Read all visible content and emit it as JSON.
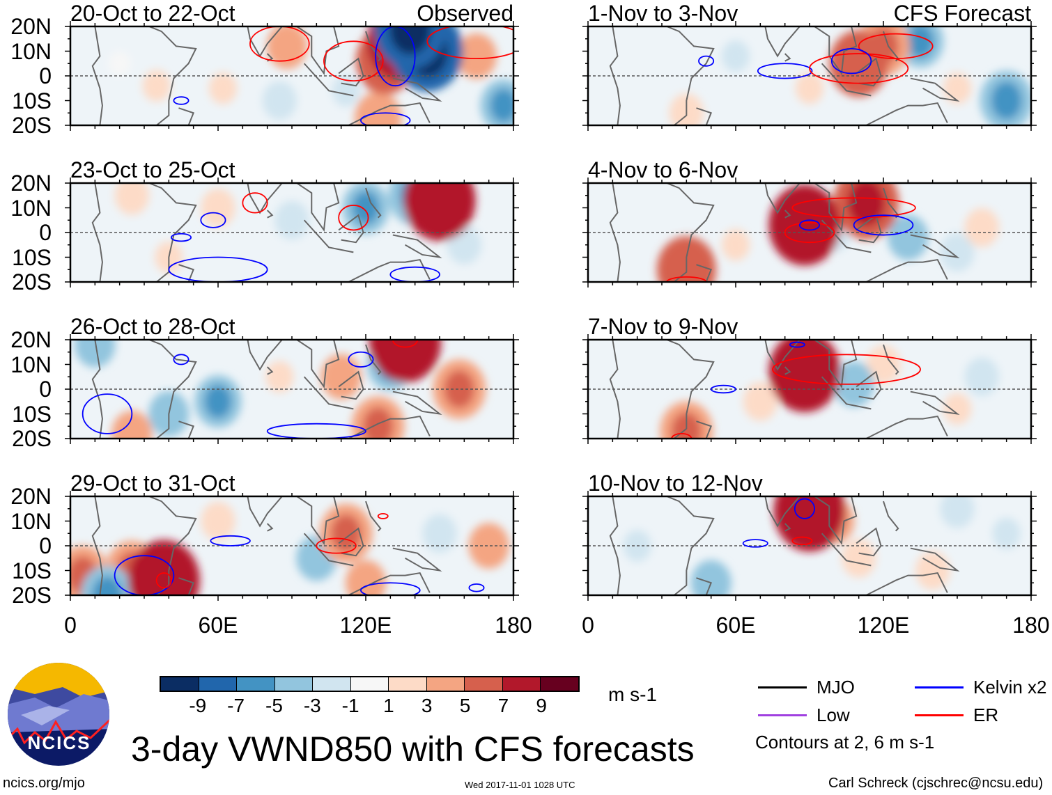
{
  "title": "3-day VWND850 with CFS forecasts",
  "footer": {
    "left": "ncics.org/mjo",
    "center": "Wed 2017-11-01 1028 UTC",
    "right": "Carl Schreck (cjschrec@ncsu.edu)"
  },
  "logo_text": "NCICS",
  "colorbar": {
    "units": "m s-1",
    "colors": [
      "#0b2d63",
      "#2166ac",
      "#4393c3",
      "#92c5de",
      "#d1e5f0",
      "#f7f7f7",
      "#fddbc7",
      "#f4a582",
      "#d6604d",
      "#b2182b",
      "#67001f"
    ],
    "labels": [
      "-9",
      "-7",
      "-5",
      "-3",
      "-1",
      "1",
      "3",
      "5",
      "7",
      "9"
    ]
  },
  "legend": {
    "items": [
      {
        "label": "MJO",
        "color": "#000000"
      },
      {
        "label": "Kelvin x2",
        "color": "#0000ff"
      },
      {
        "label": "Low",
        "color": "#a040e0"
      },
      {
        "label": "ER",
        "color": "#ff0000"
      }
    ],
    "note": "Contours at 2, 6 m s-1"
  },
  "chart_data": {
    "type": "heatmap",
    "variable": "850-hPa meridional wind anomaly",
    "lat_ticks": [
      "20N",
      "10N",
      "0",
      "10S",
      "20S"
    ],
    "lon_ticks": [
      "0",
      "60E",
      "120E",
      "180"
    ],
    "xlim": [
      0,
      180
    ],
    "ylim": [
      -20,
      20
    ],
    "column_labels": [
      "Observed",
      "CFS Forecast"
    ],
    "panels": [
      {
        "title": "20-Oct to 22-Oct",
        "col": 0,
        "row": 0,
        "anomalies": [
          [
            135,
            14,
            9
          ],
          [
            128,
            6,
            7
          ],
          [
            145,
            10,
            -9
          ],
          [
            138,
            19,
            -9
          ],
          [
            88,
            12,
            4
          ],
          [
            165,
            8,
            4
          ],
          [
            62,
            -5,
            2
          ],
          [
            35,
            -4,
            2
          ],
          [
            125,
            -17,
            5
          ],
          [
            176,
            -12,
            -5
          ],
          [
            85,
            -10,
            -3
          ],
          [
            112,
            -6,
            -2
          ],
          [
            20,
            5,
            -1
          ]
        ],
        "contours": [
          [
            "ER",
            115,
            6,
            12,
            8
          ],
          [
            "ER",
            85,
            13,
            12,
            7
          ],
          [
            "Kelvin",
            132,
            8,
            8,
            12
          ],
          [
            "ER",
            165,
            14,
            20,
            7
          ],
          [
            "Kelvin",
            45,
            -10,
            3,
            1.5
          ],
          [
            "Kelvin",
            128,
            -18,
            10,
            3
          ]
        ]
      },
      {
        "title": "1-Nov to 3-Nov",
        "col": 1,
        "row": 1,
        "anomalies": [
          [
            110,
            5,
            7
          ],
          [
            120,
            12,
            6
          ],
          [
            135,
            14,
            -5
          ],
          [
            170,
            -10,
            -6
          ],
          [
            90,
            -5,
            2
          ],
          [
            40,
            -15,
            3
          ],
          [
            60,
            8,
            -2
          ],
          [
            150,
            -5,
            2
          ]
        ],
        "contours": [
          [
            "Kelvin",
            80,
            2,
            11,
            3
          ],
          [
            "ER",
            110,
            3,
            20,
            6
          ],
          [
            "ER",
            125,
            12,
            15,
            5
          ],
          [
            "Kelvin",
            107,
            6,
            8,
            5
          ],
          [
            "Kelvin",
            48,
            6,
            3,
            2
          ]
        ]
      },
      {
        "title": "23-Oct to 25-Oct",
        "col": 0,
        "row": 2,
        "anomalies": [
          [
            150,
            13,
            9
          ],
          [
            140,
            15,
            -6
          ],
          [
            120,
            10,
            -5
          ],
          [
            60,
            10,
            3
          ],
          [
            90,
            5,
            -3
          ],
          [
            40,
            -10,
            2
          ],
          [
            25,
            15,
            3
          ],
          [
            160,
            -5,
            -3
          ]
        ],
        "contours": [
          [
            "ER",
            115,
            6,
            6,
            5
          ],
          [
            "ER",
            75,
            12,
            5,
            4
          ],
          [
            "Kelvin",
            58,
            5,
            5,
            3
          ],
          [
            "Kelvin",
            60,
            -15,
            20,
            5
          ],
          [
            "Kelvin",
            140,
            -17,
            10,
            3
          ],
          [
            "Kelvin",
            45,
            -2,
            4,
            1.5
          ]
        ]
      },
      {
        "title": "4-Nov to 6-Nov",
        "col": 1,
        "row": 3,
        "anomalies": [
          [
            88,
            3,
            9
          ],
          [
            113,
            12,
            8
          ],
          [
            130,
            -2,
            -4
          ],
          [
            40,
            -15,
            7
          ],
          [
            150,
            -8,
            -3
          ],
          [
            160,
            2,
            3
          ],
          [
            60,
            -5,
            2
          ],
          [
            100,
            0,
            -3
          ]
        ],
        "contours": [
          [
            "ER",
            90,
            0,
            10,
            4
          ],
          [
            "ER",
            108,
            10,
            25,
            4
          ],
          [
            "Kelvin",
            120,
            3,
            12,
            4
          ],
          [
            "Kelvin",
            90,
            3,
            4,
            2
          ],
          [
            "ER",
            40,
            -20,
            8,
            2
          ]
        ]
      },
      {
        "title": "26-Oct to 28-Oct",
        "col": 0,
        "row": 4,
        "anomalies": [
          [
            136,
            19,
            9
          ],
          [
            158,
            0,
            6
          ],
          [
            60,
            -5,
            -5
          ],
          [
            40,
            -10,
            -4
          ],
          [
            125,
            -15,
            6
          ],
          [
            110,
            5,
            4
          ],
          [
            130,
            10,
            -5
          ],
          [
            25,
            -18,
            4
          ],
          [
            10,
            18,
            -4
          ],
          [
            85,
            5,
            2
          ]
        ],
        "contours": [
          [
            "ER",
            136,
            20,
            5,
            3
          ],
          [
            "Kelvin",
            118,
            12,
            5,
            3
          ],
          [
            "Kelvin",
            15,
            -10,
            10,
            8
          ],
          [
            "Kelvin",
            100,
            -17,
            20,
            3
          ],
          [
            "Kelvin",
            45,
            12,
            3,
            2
          ]
        ]
      },
      {
        "title": "7-Nov to 9-Nov",
        "col": 1,
        "row": 5,
        "anomalies": [
          [
            88,
            7,
            9
          ],
          [
            108,
            2,
            -4
          ],
          [
            40,
            -17,
            6
          ],
          [
            120,
            10,
            3
          ],
          [
            70,
            -5,
            3
          ],
          [
            150,
            -8,
            2
          ],
          [
            160,
            5,
            -3
          ]
        ],
        "contours": [
          [
            "ER",
            105,
            8,
            30,
            6
          ],
          [
            "Kelvin",
            55,
            0,
            5,
            1.5
          ],
          [
            "Kelvin",
            85,
            18,
            3,
            1
          ],
          [
            "ER",
            38,
            -20,
            4,
            2
          ]
        ]
      },
      {
        "title": "29-Oct to 31-Oct",
        "col": 0,
        "row": 6,
        "anomalies": [
          [
            38,
            -14,
            9
          ],
          [
            25,
            -10,
            6
          ],
          [
            5,
            -12,
            6
          ],
          [
            112,
            5,
            6
          ],
          [
            100,
            -5,
            -4
          ],
          [
            15,
            -20,
            -6
          ],
          [
            60,
            10,
            3
          ],
          [
            120,
            -15,
            4
          ],
          [
            170,
            0,
            4
          ],
          [
            150,
            5,
            -3
          ]
        ],
        "contours": [
          [
            "Kelvin",
            30,
            -12,
            12,
            8
          ],
          [
            "Kelvin",
            65,
            2,
            8,
            2
          ],
          [
            "ER",
            108,
            0,
            8,
            3
          ],
          [
            "ER",
            127,
            12,
            2,
            1
          ],
          [
            "Kelvin",
            130,
            -18,
            12,
            3
          ],
          [
            "Kelvin",
            165,
            -17,
            3,
            1.5
          ],
          [
            "ER",
            38,
            -14,
            3,
            3
          ]
        ]
      },
      {
        "title": "10-Nov to 12-Nov",
        "col": 1,
        "row": 7,
        "anomalies": [
          [
            90,
            14,
            9
          ],
          [
            100,
            10,
            4
          ],
          [
            50,
            -15,
            -4
          ],
          [
            110,
            -5,
            3
          ],
          [
            140,
            -10,
            3
          ],
          [
            150,
            15,
            -3
          ],
          [
            20,
            0,
            -2
          ],
          [
            170,
            5,
            -2
          ]
        ],
        "contours": [
          [
            "Kelvin",
            88,
            15,
            4,
            4
          ],
          [
            "ER",
            87,
            2,
            4,
            1.5
          ],
          [
            "Kelvin",
            68,
            1,
            5,
            1.5
          ]
        ]
      }
    ]
  }
}
